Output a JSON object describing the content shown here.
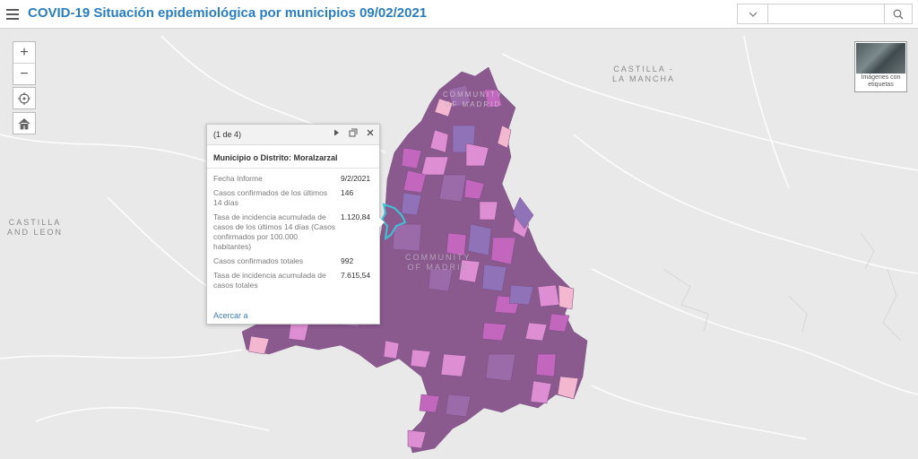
{
  "header": {
    "title": "COVID-19 Situación epidemiológica por municipios 09/02/2021",
    "search_placeholder": "",
    "search_dropdown_icon": "chevron-down-icon",
    "search_icon": "search-icon"
  },
  "map": {
    "labels": {
      "castilla_mancha_1": "CASTILLA -",
      "castilla_mancha_2": "LA MANCHA",
      "castilla_leon_1": "CASTILLA",
      "castilla_leon_2": "AND LEON",
      "community_1": "COMMUNITY",
      "community_2": "OF MADRID",
      "madrid_1": "COMMUNITY",
      "madrid_2": "OF MADRID"
    },
    "colors": {
      "background": "#e9e9e9",
      "dark": "#8a5a8f",
      "medium": "#9b6aa8",
      "violet": "#8f72b8",
      "magenta": "#c267bd",
      "pink": "#de8fd3",
      "light_pink": "#f3b8d0",
      "highlight": "#3cc4d4"
    }
  },
  "controls": {
    "zoom_in": "+",
    "zoom_out": "−",
    "basemap_label_1": "Imágenes con",
    "basemap_label_2": "etiquetas"
  },
  "popup": {
    "count": "(1 de 4)",
    "title": "Municipio o Distrito: Moralzarzal",
    "rows": [
      {
        "key": "Fecha Informe",
        "value": "9/2/2021"
      },
      {
        "key": "Casos confirmados de los últimos 14 días",
        "value": "146"
      },
      {
        "key": "Tasa de incidencia acumulada de casos de los últimos 14 días (Casos confirmados por 100.000 habitantes)",
        "value": "1.120,84"
      },
      {
        "key": "Casos confirmados totales",
        "value": "992"
      },
      {
        "key": "Tasa de incidencia acumulada de casos totales",
        "value": "7.615,54"
      }
    ],
    "zoom_link": "Acercar a"
  }
}
